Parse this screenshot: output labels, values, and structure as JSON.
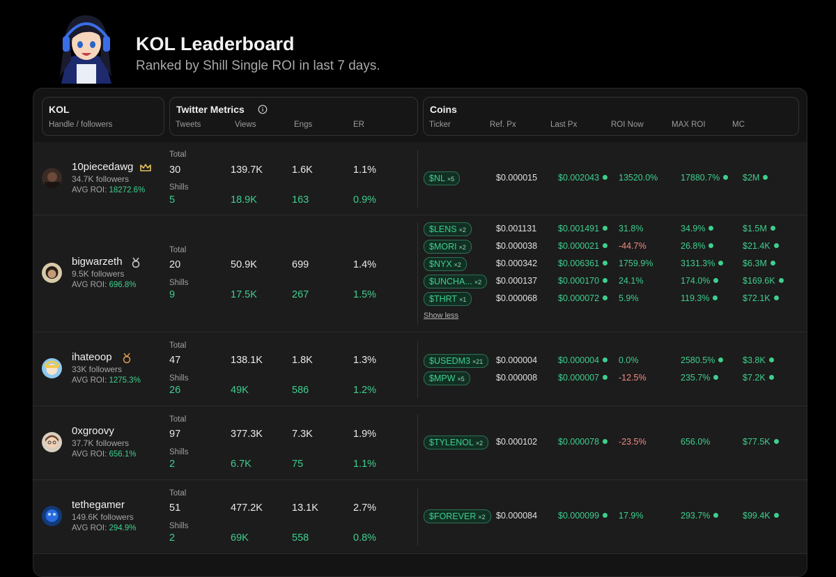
{
  "header": {
    "title": "KOL Leaderboard",
    "subtitle": "Ranked by Shill Single ROI in last 7 days."
  },
  "columns": {
    "kol": {
      "title": "KOL",
      "sub": "Handle / followers"
    },
    "twitter": {
      "title": "Twitter Metrics",
      "cols": [
        "Tweets",
        "Views",
        "Engs",
        "ER"
      ]
    },
    "coins": {
      "title": "Coins",
      "cols": [
        "Ticker",
        "Ref. Px",
        "Last Px",
        "ROI Now",
        "MAX ROI",
        "MC"
      ]
    }
  },
  "labels": {
    "total": "Total",
    "shills": "Shills",
    "avg_roi": "AVG ROI:",
    "show_less": "Show less"
  },
  "colors": {
    "accent": "#3ecf8e",
    "negative": "#f28b82",
    "gold": "#e6c35c",
    "bronze": "#e39b4c",
    "silver": "#cfcfcf"
  },
  "kols": [
    {
      "handle": "10piecedawg",
      "followers": "34.7K followers",
      "avg_roi": "18272.6%",
      "badge": "crown-icon",
      "total": {
        "tweets": "30",
        "views": "139.7K",
        "engs": "1.6K",
        "er": "1.1%"
      },
      "shills": {
        "tweets": "5",
        "views": "18.9K",
        "engs": "163",
        "er": "0.9%"
      },
      "coins": [
        {
          "ticker": "$NL",
          "mult": "×5",
          "ref": "$0.000015",
          "last": "$0.002043",
          "roi_now": "13520.0%",
          "roi_neg": false,
          "max_roi": "17880.7%",
          "mc": "$2M"
        }
      ]
    },
    {
      "handle": "bigwarzeth",
      "followers": "9.5K followers",
      "avg_roi": "696.8%",
      "badge": "silver-medal-icon",
      "total": {
        "tweets": "20",
        "views": "50.9K",
        "engs": "699",
        "er": "1.4%"
      },
      "shills": {
        "tweets": "9",
        "views": "17.5K",
        "engs": "267",
        "er": "1.5%"
      },
      "coins": [
        {
          "ticker": "$LENS",
          "mult": "×2",
          "ref": "$0.001131",
          "last": "$0.001491",
          "roi_now": "31.8%",
          "roi_neg": false,
          "max_roi": "34.9%",
          "mc": "$1.5M"
        },
        {
          "ticker": "$MORI",
          "mult": "×2",
          "ref": "$0.000038",
          "last": "$0.000021",
          "roi_now": "-44.7%",
          "roi_neg": true,
          "max_roi": "26.8%",
          "mc": "$21.4K"
        },
        {
          "ticker": "$NYX",
          "mult": "×2",
          "ref": "$0.000342",
          "last": "$0.006361",
          "roi_now": "1759.9%",
          "roi_neg": false,
          "max_roi": "3131.3%",
          "mc": "$6.3M"
        },
        {
          "ticker": "$UNCHA...",
          "mult": "×2",
          "ref": "$0.000137",
          "last": "$0.000170",
          "roi_now": "24.1%",
          "roi_neg": false,
          "max_roi": "174.0%",
          "mc": "$169.6K"
        },
        {
          "ticker": "$THRT",
          "mult": "×1",
          "ref": "$0.000068",
          "last": "$0.000072",
          "roi_now": "5.9%",
          "roi_neg": false,
          "max_roi": "119.3%",
          "mc": "$72.1K"
        }
      ]
    },
    {
      "handle": "ihateoop",
      "followers": "33K followers",
      "avg_roi": "1275.3%",
      "badge": "bronze-medal-icon",
      "total": {
        "tweets": "47",
        "views": "138.1K",
        "engs": "1.8K",
        "er": "1.3%"
      },
      "shills": {
        "tweets": "26",
        "views": "49K",
        "engs": "586",
        "er": "1.2%"
      },
      "coins": [
        {
          "ticker": "$USEDM3",
          "mult": "×21",
          "ref": "$0.000004",
          "last": "$0.000004",
          "roi_now": "0.0%",
          "roi_neg": false,
          "max_roi": "2580.5%",
          "mc": "$3.8K"
        },
        {
          "ticker": "$MPW",
          "mult": "×5",
          "ref": "$0.000008",
          "last": "$0.000007",
          "roi_now": "-12.5%",
          "roi_neg": true,
          "max_roi": "235.7%",
          "mc": "$7.2K"
        }
      ]
    },
    {
      "handle": "0xgroovy",
      "followers": "37.7K followers",
      "avg_roi": "656.1%",
      "badge": "",
      "total": {
        "tweets": "97",
        "views": "377.3K",
        "engs": "7.3K",
        "er": "1.9%"
      },
      "shills": {
        "tweets": "2",
        "views": "6.7K",
        "engs": "75",
        "er": "1.1%"
      },
      "coins": [
        {
          "ticker": "$TYLENOL",
          "mult": "×2",
          "ref": "$0.000102",
          "last": "$0.000078",
          "roi_now": "-23.5%",
          "roi_neg": true,
          "max_roi": "656.0%",
          "mc": "$77.5K"
        }
      ]
    },
    {
      "handle": "tethegamer",
      "followers": "149.6K followers",
      "avg_roi": "294.9%",
      "badge": "",
      "total": {
        "tweets": "51",
        "views": "477.2K",
        "engs": "13.1K",
        "er": "2.7%"
      },
      "shills": {
        "tweets": "2",
        "views": "69K",
        "engs": "558",
        "er": "0.8%"
      },
      "coins": [
        {
          "ticker": "$FOREVER",
          "mult": "×2",
          "ref": "$0.000084",
          "last": "$0.000099",
          "roi_now": "17.9%",
          "roi_neg": false,
          "max_roi": "293.7%",
          "mc": "$99.4K"
        }
      ]
    }
  ]
}
